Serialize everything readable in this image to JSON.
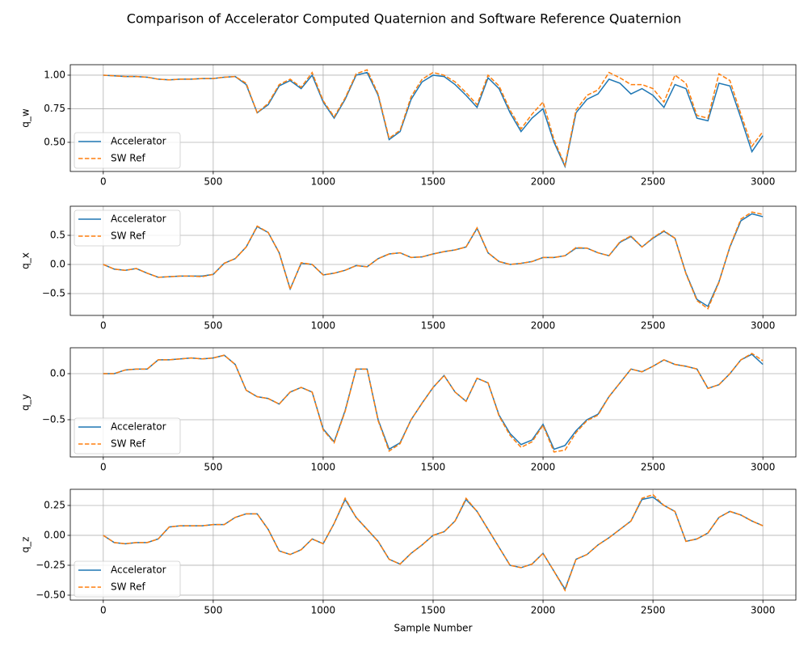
{
  "title": "Comparison of Accelerator Computed Quaternion and Software Reference Quaternion",
  "chart_data": [
    {
      "type": "line",
      "ylabel": "q_w",
      "legend": "lower left",
      "grid": true,
      "xlim": [
        -150,
        3150
      ],
      "xticks": [
        0,
        500,
        1000,
        1500,
        2000,
        2500,
        3000
      ],
      "ylim": [
        0.283,
        1.078
      ],
      "yticks": [
        {
          "value": 0.5,
          "label": "0.50"
        },
        {
          "value": 0.75,
          "label": "0.75"
        },
        {
          "value": 1.0,
          "label": "1.00"
        }
      ],
      "x": [
        0,
        50,
        100,
        150,
        200,
        250,
        300,
        350,
        400,
        450,
        500,
        550,
        600,
        650,
        700,
        750,
        800,
        850,
        900,
        950,
        1000,
        1050,
        1100,
        1150,
        1200,
        1250,
        1300,
        1350,
        1400,
        1450,
        1500,
        1550,
        1600,
        1650,
        1700,
        1750,
        1800,
        1850,
        1900,
        1950,
        2000,
        2050,
        2100,
        2150,
        2200,
        2250,
        2300,
        2350,
        2400,
        2450,
        2500,
        2550,
        2600,
        2650,
        2700,
        2750,
        2800,
        2850,
        2900,
        2950,
        3000
      ],
      "series": [
        {
          "name": "Accelerator",
          "color": "#1f77b4",
          "linestyle": "solid",
          "values": [
            1.0,
            0.995,
            0.99,
            0.99,
            0.985,
            0.97,
            0.965,
            0.97,
            0.97,
            0.975,
            0.975,
            0.985,
            0.99,
            0.93,
            0.72,
            0.78,
            0.92,
            0.96,
            0.9,
            1.0,
            0.8,
            0.68,
            0.82,
            1.0,
            1.02,
            0.85,
            0.52,
            0.58,
            0.82,
            0.95,
            1.0,
            0.99,
            0.93,
            0.85,
            0.76,
            0.98,
            0.9,
            0.72,
            0.58,
            0.68,
            0.75,
            0.5,
            0.32,
            0.72,
            0.82,
            0.86,
            0.97,
            0.94,
            0.86,
            0.9,
            0.85,
            0.76,
            0.93,
            0.9,
            0.68,
            0.66,
            0.94,
            0.92,
            0.68,
            0.43,
            0.55
          ]
        },
        {
          "name": "SW Ref",
          "color": "#ff7f0e",
          "linestyle": "dashed",
          "values": [
            1.0,
            0.995,
            0.99,
            0.99,
            0.985,
            0.97,
            0.965,
            0.97,
            0.97,
            0.975,
            0.975,
            0.985,
            0.99,
            0.94,
            0.72,
            0.79,
            0.93,
            0.97,
            0.91,
            1.02,
            0.81,
            0.69,
            0.83,
            1.01,
            1.04,
            0.86,
            0.53,
            0.59,
            0.84,
            0.97,
            1.02,
            1.0,
            0.95,
            0.87,
            0.78,
            1.0,
            0.92,
            0.74,
            0.6,
            0.71,
            0.8,
            0.52,
            0.33,
            0.74,
            0.85,
            0.89,
            1.02,
            0.98,
            0.93,
            0.93,
            0.9,
            0.8,
            1.0,
            0.94,
            0.7,
            0.68,
            1.01,
            0.96,
            0.71,
            0.47,
            0.58
          ]
        }
      ]
    },
    {
      "type": "line",
      "ylabel": "q_x",
      "legend": "upper left",
      "grid": true,
      "xlim": [
        -150,
        3150
      ],
      "xticks": [
        0,
        500,
        1000,
        1500,
        2000,
        2500,
        3000
      ],
      "ylim": [
        -0.875,
        1.0
      ],
      "yticks": [
        {
          "value": -0.5,
          "label": "−0.5"
        },
        {
          "value": 0,
          "label": "0.0"
        },
        0.5
      ],
      "x": [
        0,
        50,
        100,
        150,
        200,
        250,
        300,
        350,
        400,
        450,
        500,
        550,
        600,
        650,
        700,
        750,
        800,
        850,
        900,
        950,
        1000,
        1050,
        1100,
        1150,
        1200,
        1250,
        1300,
        1350,
        1400,
        1450,
        1500,
        1550,
        1600,
        1650,
        1700,
        1750,
        1800,
        1850,
        1900,
        1950,
        2000,
        2050,
        2100,
        2150,
        2200,
        2250,
        2300,
        2350,
        2400,
        2450,
        2500,
        2550,
        2600,
        2650,
        2700,
        2750,
        2800,
        2850,
        2900,
        2950,
        3000
      ],
      "series": [
        {
          "name": "Accelerator",
          "color": "#1f77b4",
          "linestyle": "solid",
          "values": [
            0,
            -0.08,
            -0.1,
            -0.07,
            -0.15,
            -0.22,
            -0.21,
            -0.2,
            -0.2,
            -0.2,
            -0.17,
            0.02,
            0.1,
            0.3,
            0.65,
            0.55,
            0.2,
            -0.42,
            0.02,
            0.0,
            -0.18,
            -0.15,
            -0.1,
            -0.02,
            -0.04,
            0.1,
            0.18,
            0.2,
            0.12,
            0.13,
            0.18,
            0.22,
            0.25,
            0.3,
            0.62,
            0.2,
            0.05,
            0.0,
            0.02,
            0.05,
            0.12,
            0.12,
            0.15,
            0.28,
            0.28,
            0.2,
            0.15,
            0.38,
            0.48,
            0.3,
            0.45,
            0.57,
            0.45,
            -0.15,
            -0.6,
            -0.72,
            -0.3,
            0.3,
            0.75,
            0.87,
            0.82
          ]
        },
        {
          "name": "SW Ref",
          "color": "#ff7f0e",
          "linestyle": "dashed",
          "values": [
            0,
            -0.08,
            -0.1,
            -0.07,
            -0.15,
            -0.22,
            -0.21,
            -0.2,
            -0.2,
            -0.21,
            -0.17,
            0.02,
            0.1,
            0.3,
            0.66,
            0.55,
            0.2,
            -0.43,
            0.03,
            0.0,
            -0.18,
            -0.15,
            -0.1,
            -0.02,
            -0.04,
            0.1,
            0.18,
            0.2,
            0.12,
            0.13,
            0.18,
            0.22,
            0.25,
            0.3,
            0.63,
            0.2,
            0.05,
            0.0,
            0.02,
            0.05,
            0.12,
            0.12,
            0.15,
            0.29,
            0.28,
            0.2,
            0.15,
            0.39,
            0.49,
            0.3,
            0.46,
            0.58,
            0.45,
            -0.16,
            -0.62,
            -0.76,
            -0.31,
            0.31,
            0.78,
            0.9,
            0.86
          ]
        }
      ]
    },
    {
      "type": "line",
      "ylabel": "q_y",
      "legend": "lower left",
      "grid": true,
      "xlim": [
        -150,
        3150
      ],
      "xticks": [
        0,
        500,
        1000,
        1500,
        2000,
        2500,
        3000
      ],
      "ylim": [
        -0.904,
        0.281
      ],
      "yticks": [
        {
          "value": -0.5,
          "label": "−0.5"
        },
        {
          "value": 0,
          "label": "0.0"
        }
      ],
      "x": [
        0,
        50,
        100,
        150,
        200,
        250,
        300,
        350,
        400,
        450,
        500,
        550,
        600,
        650,
        700,
        750,
        800,
        850,
        900,
        950,
        1000,
        1050,
        1100,
        1150,
        1200,
        1250,
        1300,
        1350,
        1400,
        1450,
        1500,
        1550,
        1600,
        1650,
        1700,
        1750,
        1800,
        1850,
        1900,
        1950,
        2000,
        2050,
        2100,
        2150,
        2200,
        2250,
        2300,
        2350,
        2400,
        2450,
        2500,
        2550,
        2600,
        2650,
        2700,
        2750,
        2800,
        2850,
        2900,
        2950,
        3000
      ],
      "series": [
        {
          "name": "Accelerator",
          "color": "#1f77b4",
          "linestyle": "solid",
          "values": [
            0,
            0.0,
            0.04,
            0.05,
            0.05,
            0.15,
            0.15,
            0.16,
            0.17,
            0.16,
            0.17,
            0.2,
            0.1,
            -0.18,
            -0.25,
            -0.27,
            -0.33,
            -0.2,
            -0.15,
            -0.2,
            -0.6,
            -0.74,
            -0.4,
            0.05,
            0.05,
            -0.5,
            -0.82,
            -0.75,
            -0.5,
            -0.32,
            -0.15,
            -0.02,
            -0.2,
            -0.3,
            -0.05,
            -0.1,
            -0.45,
            -0.65,
            -0.77,
            -0.72,
            -0.55,
            -0.82,
            -0.78,
            -0.62,
            -0.5,
            -0.44,
            -0.25,
            -0.1,
            0.05,
            0.02,
            0.08,
            0.15,
            0.1,
            0.08,
            0.05,
            -0.16,
            -0.12,
            0.0,
            0.15,
            0.21,
            0.1
          ]
        },
        {
          "name": "SW Ref",
          "color": "#ff7f0e",
          "linestyle": "dashed",
          "values": [
            0,
            0.0,
            0.04,
            0.05,
            0.05,
            0.15,
            0.15,
            0.16,
            0.17,
            0.16,
            0.17,
            0.2,
            0.1,
            -0.18,
            -0.25,
            -0.27,
            -0.33,
            -0.2,
            -0.15,
            -0.2,
            -0.61,
            -0.75,
            -0.41,
            0.05,
            0.05,
            -0.51,
            -0.84,
            -0.76,
            -0.5,
            -0.32,
            -0.15,
            -0.02,
            -0.2,
            -0.3,
            -0.05,
            -0.1,
            -0.46,
            -0.67,
            -0.8,
            -0.74,
            -0.56,
            -0.85,
            -0.83,
            -0.64,
            -0.51,
            -0.45,
            -0.25,
            -0.1,
            0.05,
            0.02,
            0.08,
            0.15,
            0.1,
            0.08,
            0.05,
            -0.16,
            -0.12,
            0.0,
            0.15,
            0.22,
            0.14
          ]
        }
      ]
    },
    {
      "type": "line",
      "ylabel": "q_z",
      "xlabel": "Sample Number",
      "legend": "lower left",
      "grid": true,
      "xlim": [
        -150,
        3150
      ],
      "xticks": [
        0,
        500,
        1000,
        1500,
        2000,
        2500,
        3000
      ],
      "ylim": [
        -0.541,
        0.385
      ],
      "yticks": [
        {
          "value": -0.5,
          "label": "−0.50"
        },
        {
          "value": -0.25,
          "label": "−0.25"
        },
        {
          "value": 0,
          "label": "0.00"
        },
        0.25
      ],
      "x": [
        0,
        50,
        100,
        150,
        200,
        250,
        300,
        350,
        400,
        450,
        500,
        550,
        600,
        650,
        700,
        750,
        800,
        850,
        900,
        950,
        1000,
        1050,
        1100,
        1150,
        1200,
        1250,
        1300,
        1350,
        1400,
        1450,
        1500,
        1550,
        1600,
        1650,
        1700,
        1750,
        1800,
        1850,
        1900,
        1950,
        2000,
        2050,
        2100,
        2150,
        2200,
        2250,
        2300,
        2350,
        2400,
        2450,
        2500,
        2550,
        2600,
        2650,
        2700,
        2750,
        2800,
        2850,
        2900,
        2950,
        3000
      ],
      "series": [
        {
          "name": "Accelerator",
          "color": "#1f77b4",
          "linestyle": "solid",
          "values": [
            0,
            -0.06,
            -0.07,
            -0.06,
            -0.06,
            -0.03,
            0.07,
            0.08,
            0.08,
            0.08,
            0.09,
            0.09,
            0.15,
            0.18,
            0.18,
            0.05,
            -0.13,
            -0.16,
            -0.12,
            -0.03,
            -0.07,
            0.1,
            0.3,
            0.15,
            0.05,
            -0.05,
            -0.2,
            -0.24,
            -0.15,
            -0.08,
            0.0,
            0.03,
            0.12,
            0.3,
            0.2,
            0.05,
            -0.1,
            -0.25,
            -0.27,
            -0.24,
            -0.15,
            -0.3,
            -0.45,
            -0.2,
            -0.16,
            -0.08,
            -0.02,
            0.05,
            0.12,
            0.3,
            0.32,
            0.25,
            0.2,
            -0.05,
            -0.03,
            0.02,
            0.15,
            0.2,
            0.17,
            0.12,
            0.08
          ]
        },
        {
          "name": "SW Ref",
          "color": "#ff7f0e",
          "linestyle": "dashed",
          "values": [
            0,
            -0.06,
            -0.07,
            -0.06,
            -0.06,
            -0.03,
            0.07,
            0.08,
            0.08,
            0.08,
            0.09,
            0.09,
            0.15,
            0.18,
            0.18,
            0.05,
            -0.13,
            -0.16,
            -0.12,
            -0.03,
            -0.07,
            0.1,
            0.31,
            0.15,
            0.05,
            -0.05,
            -0.2,
            -0.24,
            -0.15,
            -0.08,
            0.0,
            0.03,
            0.12,
            0.31,
            0.2,
            0.05,
            -0.1,
            -0.25,
            -0.27,
            -0.24,
            -0.15,
            -0.3,
            -0.46,
            -0.2,
            -0.16,
            -0.08,
            -0.02,
            0.05,
            0.12,
            0.31,
            0.34,
            0.25,
            0.2,
            -0.05,
            -0.03,
            0.02,
            0.15,
            0.2,
            0.17,
            0.12,
            0.08
          ]
        }
      ]
    }
  ]
}
